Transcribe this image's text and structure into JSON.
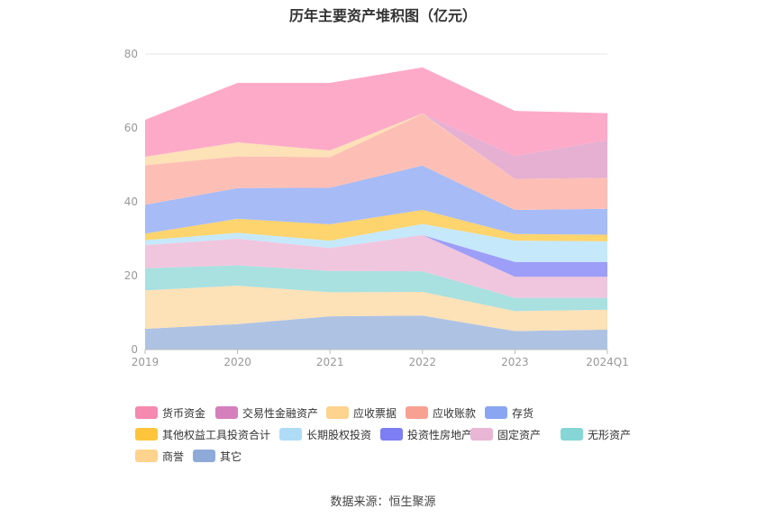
{
  "chart_data": {
    "type": "area",
    "stacked": true,
    "title": "历年主要资产堆积图（亿元）",
    "categories": [
      "2019",
      "2020",
      "2021",
      "2022",
      "2023",
      "2024Q1"
    ],
    "ylim": [
      0,
      80
    ],
    "yticks": [
      0,
      20,
      40,
      60,
      80
    ],
    "grid": true,
    "legend_position": "bottom",
    "series": [
      {
        "name": "其它",
        "color": "#aec3e3",
        "values": [
          5.6,
          6.9,
          9.0,
          9.2,
          5.0,
          5.4
        ]
      },
      {
        "name": "商誉",
        "color": "#fde1b7",
        "values": [
          10.4,
          10.4,
          6.5,
          6.4,
          5.4,
          5.4
        ]
      },
      {
        "name": "无形资产",
        "color": "#a9e0e0",
        "values": [
          6.0,
          5.5,
          5.8,
          5.6,
          3.6,
          3.2
        ]
      },
      {
        "name": "固定资产",
        "color": "#f0c6de",
        "values": [
          6.3,
          7.2,
          6.2,
          9.8,
          5.7,
          5.7
        ]
      },
      {
        "name": "投资性房地产",
        "color": "#9d9ef7",
        "values": [
          0,
          0,
          0,
          0,
          4.0,
          4.0
        ]
      },
      {
        "name": "长期股权投资",
        "color": "#c6e8fb",
        "values": [
          1.3,
          1.6,
          2.0,
          3.0,
          5.8,
          5.6
        ]
      },
      {
        "name": "其他权益工具投资合计",
        "color": "#fdd46d",
        "values": [
          1.8,
          3.8,
          4.4,
          3.8,
          1.8,
          1.8
        ]
      },
      {
        "name": "存货",
        "color": "#a7bbf6",
        "values": [
          7.8,
          8.3,
          9.9,
          12.0,
          6.5,
          7.0
        ]
      },
      {
        "name": "应收账款",
        "color": "#fdbfb5",
        "values": [
          10.7,
          8.6,
          8.3,
          14.0,
          8.4,
          8.4
        ]
      },
      {
        "name": "应收票据",
        "color": "#fde1b7",
        "values": [
          2.3,
          3.8,
          1.8,
          0.1,
          0,
          0
        ]
      },
      {
        "name": "交易性金融资产",
        "color": "#e6b0d2",
        "values": [
          0,
          0,
          0,
          0,
          6.2,
          10.2
        ]
      },
      {
        "name": "货币资金",
        "color": "#fdaac8",
        "values": [
          10.0,
          16.1,
          18.3,
          12.5,
          12.2,
          7.3
        ]
      }
    ],
    "legend_order": [
      "货币资金",
      "交易性金融资产",
      "应收票据",
      "应收账款",
      "存货",
      "其他权益工具投资合计",
      "长期股权投资",
      "投资性房地产",
      "固定资产",
      "无形资产",
      "商誉",
      "其它"
    ],
    "legend_colors": [
      "#f589b0",
      "#d580bd",
      "#fdd38e",
      "#f8a193",
      "#8aa6f2",
      "#fdc43c",
      "#aedcf7",
      "#7d7ef3",
      "#e9b7d5",
      "#86d6d6",
      "#fdd38e",
      "#8eaad9"
    ]
  },
  "source_text": "数据来源：恒生聚源"
}
